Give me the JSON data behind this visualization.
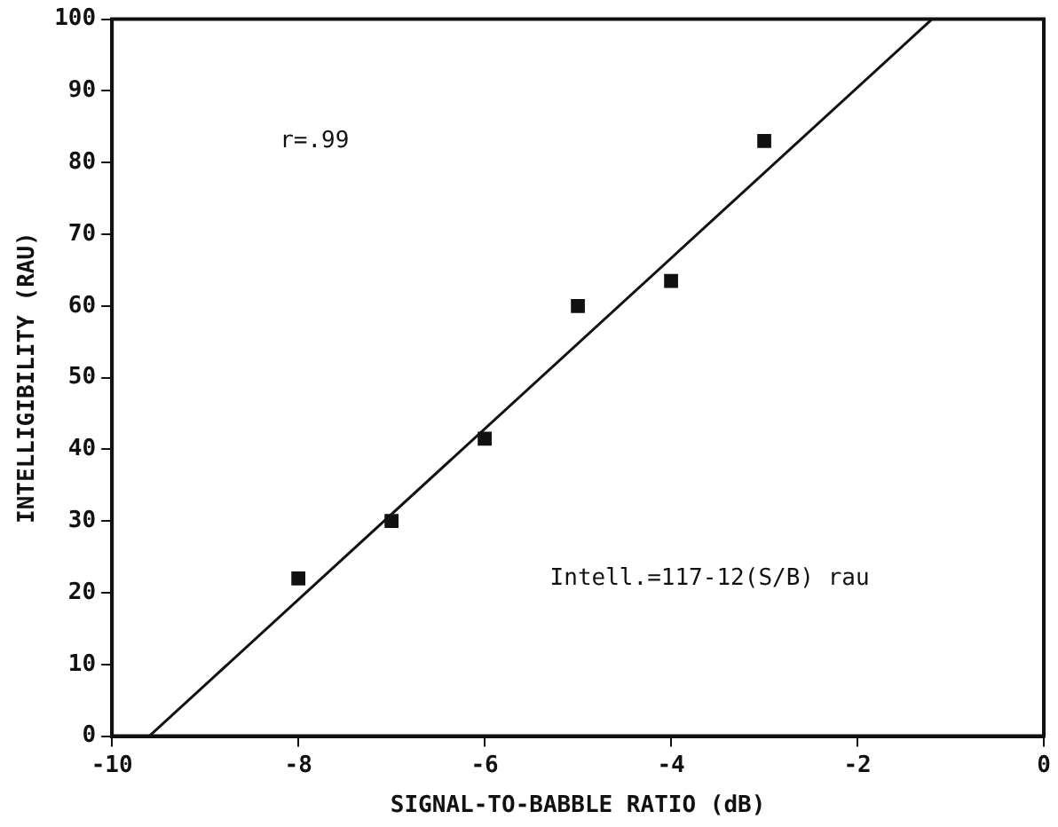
{
  "chart_data": {
    "type": "scatter",
    "xlabel": "SIGNAL-TO-BABBLE RATIO (dB)",
    "ylabel": "INTELLIGIBILITY (RAU)",
    "x": [
      -8,
      -7,
      -6,
      -5,
      -4,
      -3
    ],
    "series": [
      {
        "color": "#111111",
        "marker": "square",
        "values": [
          22,
          30,
          41.5,
          60,
          63.5,
          83
        ]
      },
      {
        "type": "line",
        "color": "#111111",
        "marker": "none",
        "x": [
          -9.6,
          -1.2
        ],
        "values": [
          0,
          100
        ]
      }
    ],
    "xlim": [
      -10,
      0
    ],
    "xticks": [
      -10,
      -8,
      -6,
      -4,
      -2,
      0
    ],
    "ylim": [
      0,
      100
    ],
    "yticks": [
      0,
      10,
      20,
      30,
      40,
      50,
      60,
      70,
      80,
      90,
      100
    ],
    "grid": false,
    "legend": false,
    "annotations": [
      "r=.99",
      "Intell.=117-12(S/B) rau"
    ]
  }
}
